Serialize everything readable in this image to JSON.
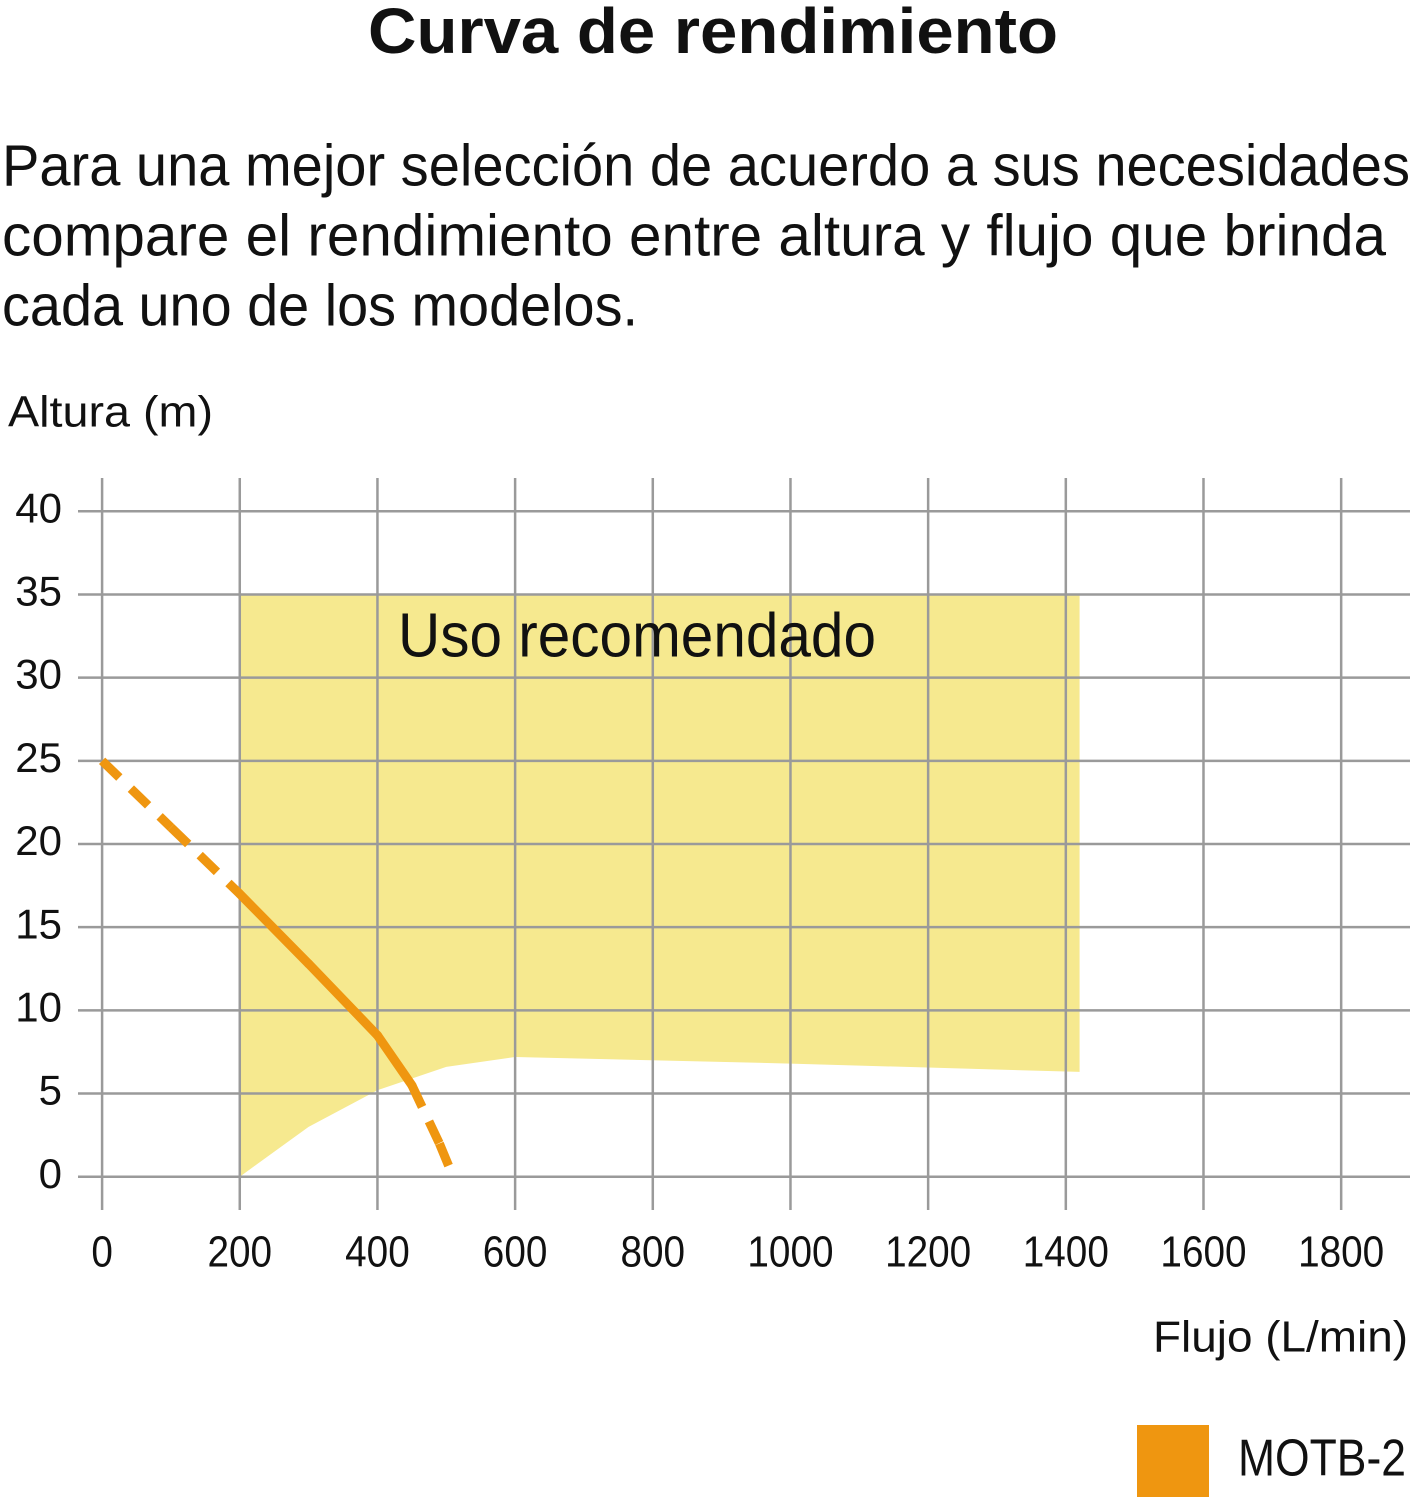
{
  "chart_data": {
    "type": "line",
    "title": "Curva de rendimiento",
    "description": [
      "Para una mejor selección de acuerdo a sus necesidades",
      "compare el rendimiento entre altura y flujo que brinda",
      "cada uno de los modelos."
    ],
    "y_label": "Altura (m)",
    "x_label": "Flujo (L/min)",
    "xlim": [
      -35,
      1900
    ],
    "ylim": [
      -2,
      42
    ],
    "xticks": [
      0,
      200,
      400,
      600,
      800,
      1000,
      1200,
      1400,
      1600,
      1800
    ],
    "yticks": [
      0,
      5,
      10,
      15,
      20,
      25,
      30,
      35,
      40
    ],
    "grid": true,
    "legend": "bottom-right",
    "region": {
      "label": "Uso recomendado",
      "color": "#f6e98f",
      "x": [
        200,
        300,
        400,
        500,
        600,
        1000,
        1420
      ],
      "lower": [
        0,
        3,
        5.2,
        6.6,
        7.2,
        6.8,
        6.3
      ],
      "upper": [
        35,
        35,
        35,
        35,
        35,
        35,
        35
      ]
    },
    "series": [
      {
        "name": "MOTB-2",
        "color": "#ef9610",
        "x": [
          0,
          100,
          200,
          300,
          400,
          450,
          490,
          510
        ],
        "values": [
          25,
          21,
          17,
          12.8,
          8.5,
          5.5,
          2,
          0
        ],
        "line_style": [
          "dashed",
          "dashed",
          "solid",
          "solid",
          "solid",
          "dashed",
          "dashed"
        ]
      }
    ]
  }
}
